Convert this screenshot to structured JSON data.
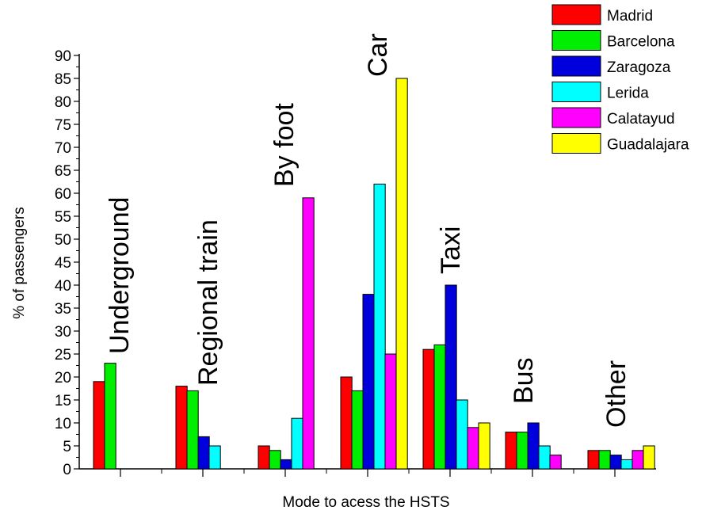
{
  "chart_data": {
    "type": "bar",
    "xlabel": "Mode to acess the HSTS",
    "ylabel": "% of passengers",
    "ylim": [
      0,
      90
    ],
    "yticks": [
      0,
      5,
      10,
      15,
      20,
      25,
      30,
      35,
      40,
      45,
      50,
      55,
      60,
      65,
      70,
      75,
      80,
      85,
      90
    ],
    "categories": [
      "Underground",
      "Regional train",
      "By foot",
      "Car",
      "Taxi",
      "Bus",
      "Other"
    ],
    "series": [
      {
        "name": "Madrid",
        "color": "#ff0000",
        "values": [
          19,
          18,
          5,
          20,
          26,
          8,
          4
        ]
      },
      {
        "name": "Barcelona",
        "color": "#00ee00",
        "values": [
          23,
          17,
          4,
          17,
          27,
          8,
          4
        ]
      },
      {
        "name": "Zaragoza",
        "color": "#0000dd",
        "values": [
          0,
          7,
          2,
          38,
          40,
          10,
          3
        ]
      },
      {
        "name": "Lerida",
        "color": "#00ffff",
        "values": [
          0,
          5,
          11,
          62,
          15,
          5,
          2
        ]
      },
      {
        "name": "Calatayud",
        "color": "#ff00ff",
        "values": [
          0,
          0,
          59,
          25,
          9,
          3,
          4
        ]
      },
      {
        "name": "Guadalajara",
        "color": "#ffff00",
        "values": [
          0,
          0,
          0,
          85,
          10,
          0,
          5
        ]
      }
    ],
    "legend_position": "top-right",
    "grid": false
  }
}
